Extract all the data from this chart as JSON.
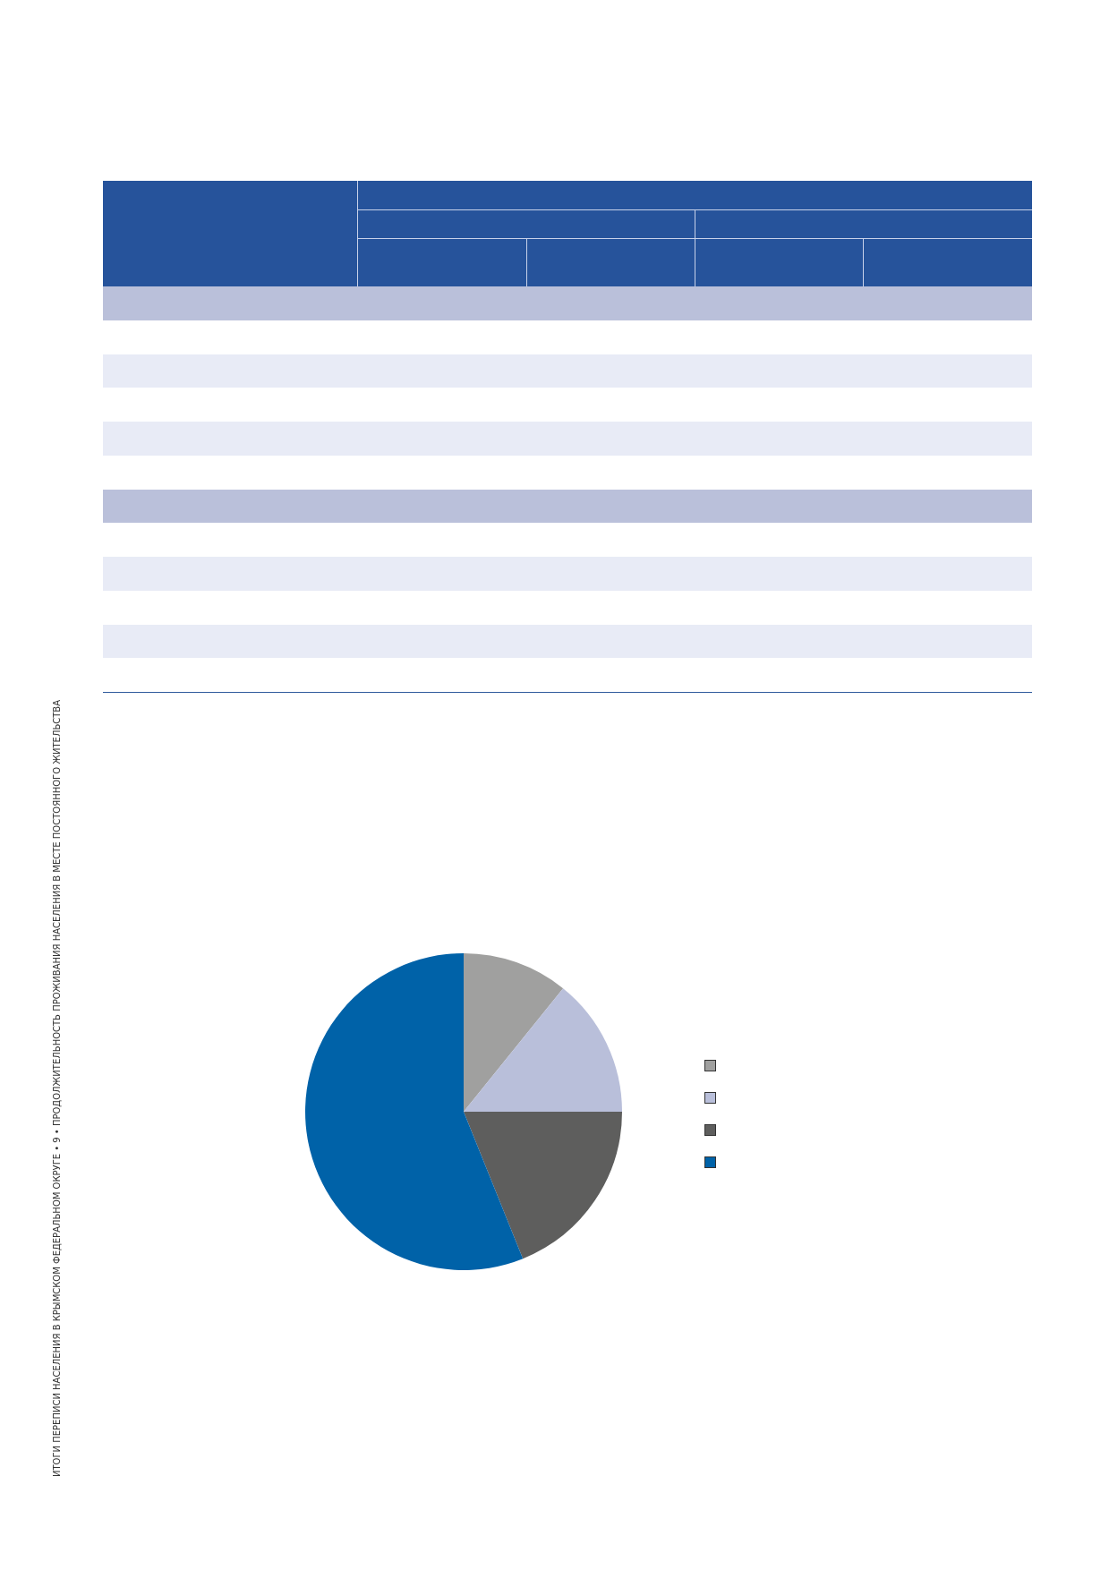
{
  "chart_data": {
    "type": "pie",
    "categories": [
      null,
      null,
      null,
      null
    ],
    "values": [
      10.8,
      14.2,
      18.9,
      56.1
    ],
    "colors": [
      "#a0a09f",
      "#b9bfda",
      "#5e5e5d",
      "#0062a8"
    ],
    "annotations": [
      "ИТОГИ ПЕРЕПИСИ НАСЕЛЕНИЯ В КРЫМСКОМ ФЕДЕРАЛЬНОМ ОКРУГЕ • 9 • ПРОДОЛЖИТЕЛЬНОСТЬ ПРОЖИВАНИЯ НАСЕЛЕНИЯ В МЕСТЕ ПОСТОЯННОГО ЖИТЕЛЬСТВА"
    ]
  }
}
